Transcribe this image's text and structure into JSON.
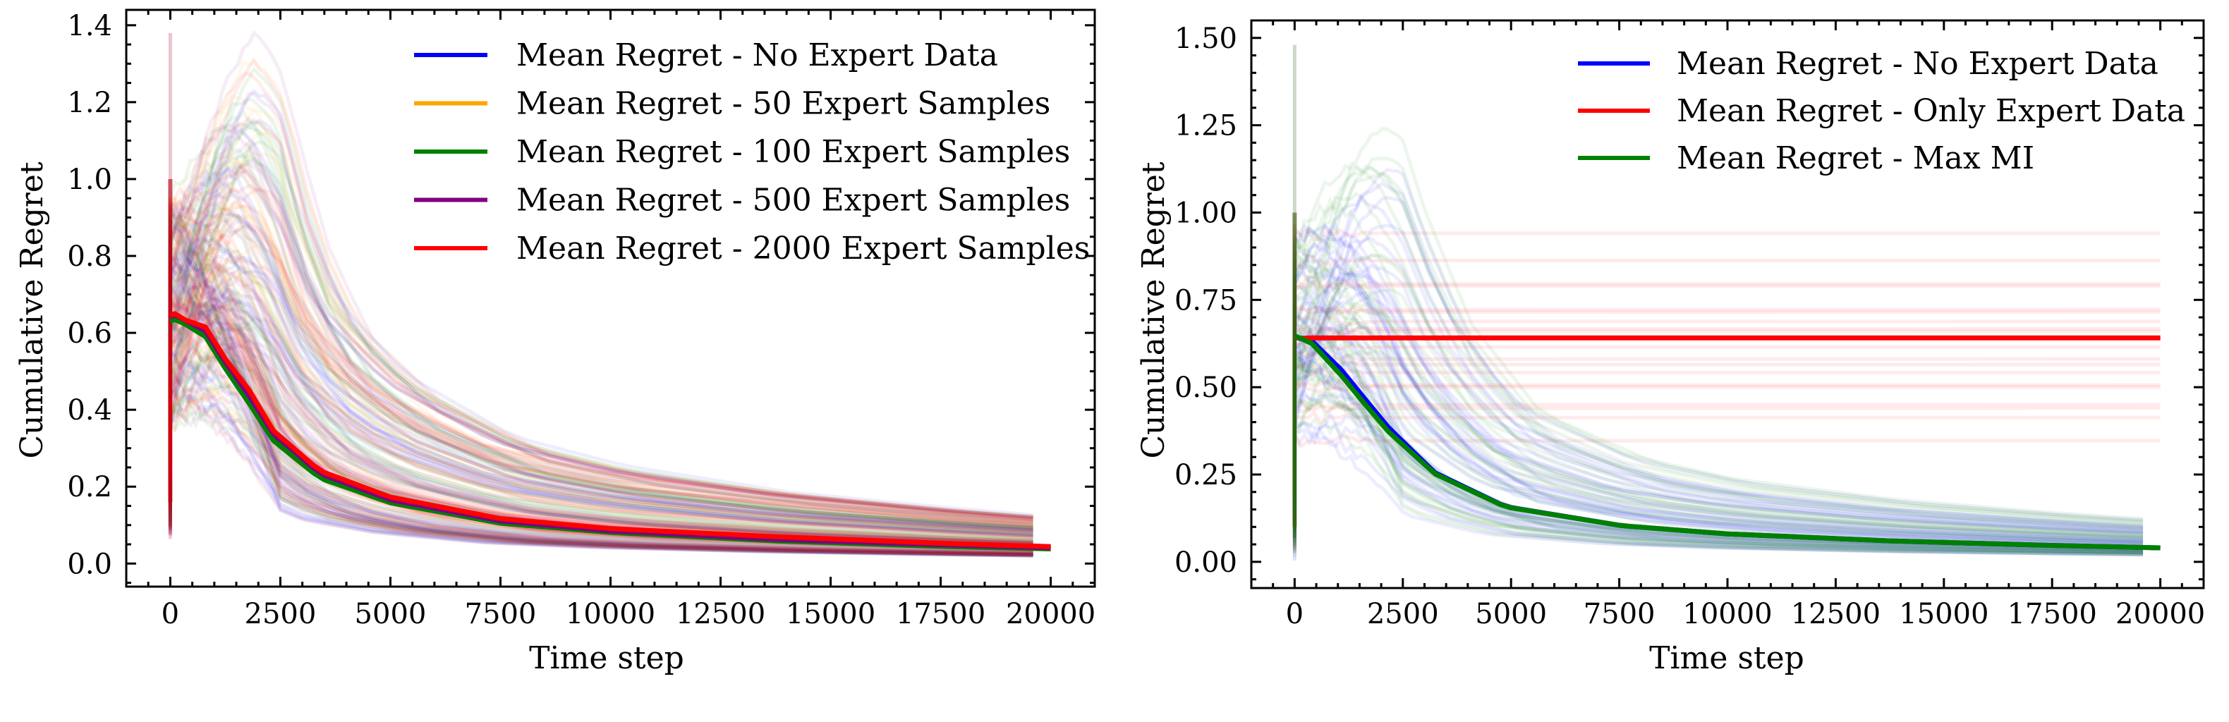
{
  "figure": {
    "description": "Two side-by-side line plots of cumulative regret vs time step"
  },
  "chart_data": [
    {
      "type": "line",
      "title": "",
      "xlabel": "Time step",
      "ylabel": "Cumulative Regret",
      "xlim": [
        -1000,
        21000
      ],
      "ylim": [
        -0.06,
        1.44
      ],
      "xticks": [
        0,
        2500,
        5000,
        7500,
        10000,
        12500,
        15000,
        17500,
        20000
      ],
      "xtick_labels": [
        "0",
        "2500",
        "5000",
        "7500",
        "10000",
        "12500",
        "15000",
        "17500",
        "20000"
      ],
      "yticks": [
        0.0,
        0.2,
        0.4,
        0.6,
        0.8,
        1.0,
        1.2,
        1.4
      ],
      "ytick_labels": [
        "0.0",
        "0.2",
        "0.4",
        "0.6",
        "0.8",
        "1.0",
        "1.2",
        "1.4"
      ],
      "x_minor_step": 500,
      "y_minor_step": 0.05,
      "grid": false,
      "legend_position": "top-right",
      "series": [
        {
          "name": "Mean Regret - No Expert Data",
          "color": "#0000ff",
          "x": [
            0,
            100,
            350,
            800,
            1265,
            1800,
            2340,
            3400,
            5000,
            7500,
            10000,
            13750,
            17500,
            20000
          ],
          "y": [
            0.64,
            0.645,
            0.63,
            0.6,
            0.52,
            0.43,
            0.335,
            0.232,
            0.165,
            0.11,
            0.085,
            0.062,
            0.048,
            0.04
          ]
        },
        {
          "name": "Mean Regret - 50 Expert Samples",
          "color": "#ffa500",
          "x": [
            0,
            100,
            350,
            800,
            1265,
            1800,
            2340,
            3400,
            5000,
            7500,
            10000,
            13750,
            17500,
            20000
          ],
          "y": [
            0.64,
            0.645,
            0.632,
            0.605,
            0.525,
            0.44,
            0.342,
            0.238,
            0.17,
            0.114,
            0.088,
            0.066,
            0.051,
            0.043
          ]
        },
        {
          "name": "Mean Regret - 100 Expert Samples",
          "color": "#008000",
          "x": [
            0,
            100,
            350,
            800,
            1265,
            1800,
            2340,
            3400,
            5000,
            7500,
            10000,
            13750,
            17500,
            20000
          ],
          "y": [
            0.63,
            0.635,
            0.622,
            0.59,
            0.505,
            0.415,
            0.32,
            0.222,
            0.158,
            0.105,
            0.081,
            0.059,
            0.045,
            0.038
          ]
        },
        {
          "name": "Mean Regret - 500 Expert Samples",
          "color": "#800080",
          "x": [
            0,
            100,
            350,
            800,
            1265,
            1800,
            2340,
            3400,
            5000,
            7500,
            10000,
            13750,
            17500,
            20000
          ],
          "y": [
            0.64,
            0.648,
            0.632,
            0.605,
            0.522,
            0.435,
            0.338,
            0.234,
            0.166,
            0.111,
            0.085,
            0.063,
            0.049,
            0.041
          ]
        },
        {
          "name": "Mean Regret - 2000 Expert Samples",
          "color": "#ff0000",
          "x": [
            0,
            100,
            350,
            800,
            1265,
            1800,
            2340,
            3400,
            5000,
            7500,
            10000,
            13750,
            17500,
            20000
          ],
          "y": [
            0.645,
            0.65,
            0.633,
            0.615,
            0.53,
            0.45,
            0.346,
            0.241,
            0.173,
            0.117,
            0.091,
            0.07,
            0.053,
            0.044
          ]
        }
      ],
      "individual_runs": {
        "description": "Faint translucent per-run curves behind the means (approx. 40 per series)",
        "final_value_range": [
          0.02,
          0.12
        ],
        "initial_spike_max": 1.38,
        "initial_spike_min": 0.06
      }
    },
    {
      "type": "line",
      "title": "",
      "xlabel": "Time step",
      "ylabel": "Cumulative Regret",
      "xlim": [
        -1000,
        21000
      ],
      "ylim": [
        -0.075,
        1.55
      ],
      "xticks": [
        0,
        2500,
        5000,
        7500,
        10000,
        12500,
        15000,
        17500,
        20000
      ],
      "xtick_labels": [
        "0",
        "2500",
        "5000",
        "7500",
        "10000",
        "12500",
        "15000",
        "17500",
        "20000"
      ],
      "yticks": [
        0.0,
        0.25,
        0.5,
        0.75,
        1.0,
        1.25,
        1.5
      ],
      "ytick_labels": [
        "0.00",
        "0.25",
        "0.50",
        "0.75",
        "1.00",
        "1.25",
        "1.50"
      ],
      "x_minor_step": 500,
      "y_minor_step": 0.05,
      "grid": false,
      "legend_position": "top-right",
      "series": [
        {
          "name": "Mean Regret - No Expert Data",
          "color": "#0000ff",
          "x": [
            0,
            100,
            400,
            1075,
            1600,
            2165,
            3240,
            4870,
            7580,
            10000,
            13750,
            17500,
            20000
          ],
          "y": [
            0.645,
            0.64,
            0.632,
            0.55,
            0.47,
            0.385,
            0.255,
            0.158,
            0.103,
            0.08,
            0.06,
            0.047,
            0.04
          ]
        },
        {
          "name": "Mean Regret - Only Expert Data",
          "color": "#ff0000",
          "x": [
            0,
            100,
            400,
            2000,
            5000,
            10000,
            15000,
            20000
          ],
          "y": [
            0.645,
            0.64,
            0.641,
            0.641,
            0.641,
            0.641,
            0.641,
            0.641
          ]
        },
        {
          "name": "Mean Regret - Max MI",
          "color": "#008000",
          "x": [
            0,
            100,
            400,
            1075,
            1600,
            2165,
            3240,
            4870,
            7580,
            10000,
            13750,
            17500,
            20000
          ],
          "y": [
            0.647,
            0.642,
            0.625,
            0.534,
            0.455,
            0.373,
            0.252,
            0.157,
            0.103,
            0.08,
            0.06,
            0.047,
            0.04
          ]
        }
      ],
      "expert_only_runs_levels": [
        0.941,
        0.863,
        0.796,
        0.79,
        0.722,
        0.715,
        0.688,
        0.667,
        0.66,
        0.615,
        0.581,
        0.565,
        0.542,
        0.506,
        0.5,
        0.45,
        0.44,
        0.413,
        0.347
      ],
      "individual_runs": {
        "description": "Faint translucent per-run curves behind the means (approx. 40 per series)",
        "final_value_range": [
          0.02,
          0.12
        ],
        "initial_spike_max": 1.48,
        "initial_spike_min": 0.0
      }
    }
  ]
}
